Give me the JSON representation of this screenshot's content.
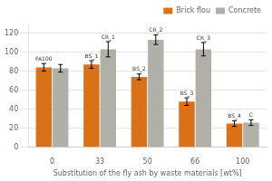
{
  "chart_data": {
    "type": "bar",
    "xlabel": "Substitution of the fly ash by waste materials [wt%]",
    "categories": [
      "0",
      "33",
      "50",
      "66",
      "100"
    ],
    "series": [
      {
        "name": "Brick flou",
        "color": "#D97118",
        "values": [
          84,
          87,
          74,
          48,
          25
        ],
        "errors": [
          4,
          4,
          3,
          4,
          3
        ],
        "annotations": [
          "FA100",
          "BS_1",
          "BS_2",
          "BS_3",
          "BS_4"
        ]
      },
      {
        "name": "Concrete",
        "color": "#B0AFA8",
        "values": [
          83,
          103,
          113,
          103,
          26
        ],
        "errors": [
          4,
          8,
          5,
          7,
          3
        ],
        "annotations": [
          null,
          "CR_1",
          "CR_2",
          "CR_3",
          "C"
        ]
      }
    ],
    "ylim": [
      0,
      130
    ],
    "yticks": [
      0,
      20,
      40,
      60,
      80,
      100,
      120
    ],
    "grid": true,
    "legend": "upper right"
  }
}
